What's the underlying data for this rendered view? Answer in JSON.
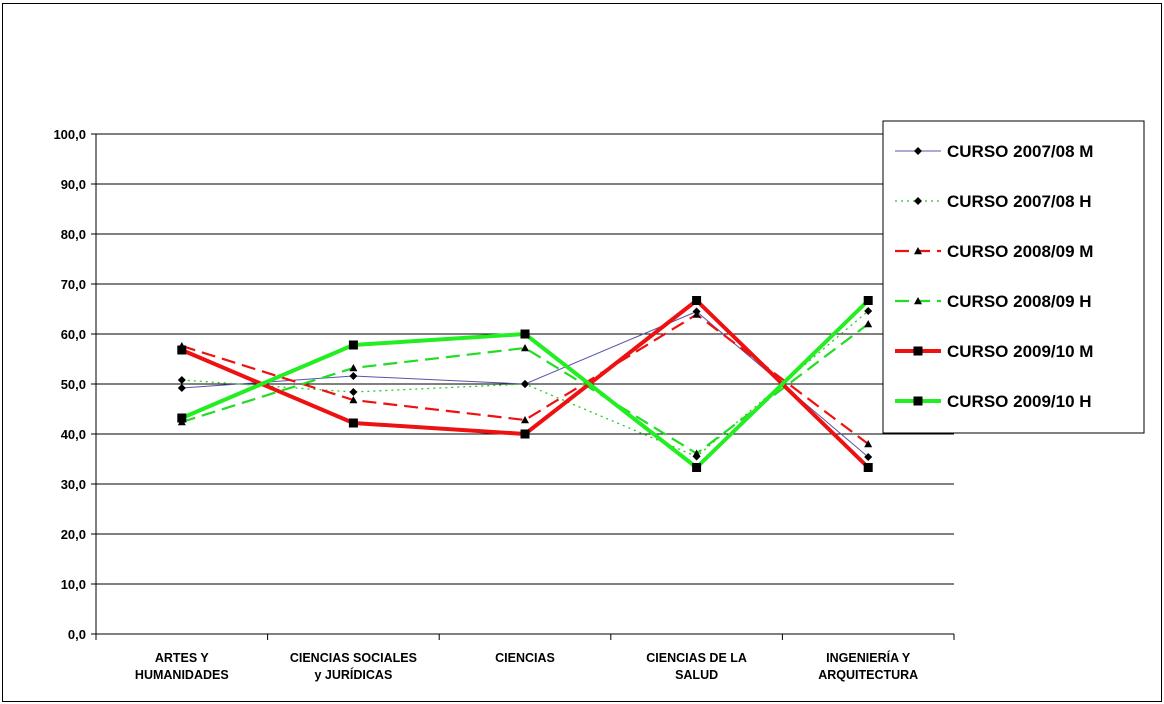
{
  "chart_data": {
    "type": "line",
    "categories": [
      [
        "ARTES Y",
        "HUMANIDADES"
      ],
      [
        "CIENCIAS SOCIALES",
        "y JURÍDICAS"
      ],
      [
        "CIENCIAS"
      ],
      [
        "CIENCIAS DE LA",
        "SALUD"
      ],
      [
        "INGENIERÍA Y",
        "ARQUITECTURA"
      ]
    ],
    "ylim": [
      0,
      100
    ],
    "yticks": [
      "0,0",
      "10,0",
      "20,0",
      "30,0",
      "40,0",
      "50,0",
      "60,0",
      "70,0",
      "80,0",
      "90,0",
      "100,0"
    ],
    "grid": true,
    "legend_position": "right",
    "series": [
      {
        "name": "CURSO 2007/08 M",
        "values": [
          49.2,
          51.6,
          50.0,
          64.5,
          35.4
        ],
        "color": "#5555aa",
        "dash": "",
        "width": 1,
        "marker": "diamond"
      },
      {
        "name": "CURSO 2007/08 H",
        "values": [
          50.8,
          48.4,
          50.0,
          35.5,
          64.6
        ],
        "color": "#22cc22",
        "dash": "2,4",
        "width": 1.3,
        "marker": "diamond"
      },
      {
        "name": "CURSO 2008/09 M",
        "values": [
          57.6,
          46.8,
          42.8,
          63.9,
          38.0
        ],
        "color": "#ee1111",
        "dash": "14,7",
        "width": 2.2,
        "marker": "triangle"
      },
      {
        "name": "CURSO 2008/09 H",
        "values": [
          42.4,
          53.2,
          57.2,
          36.1,
          62.0
        ],
        "color": "#22dd22",
        "dash": "14,7",
        "width": 2.2,
        "marker": "triangle"
      },
      {
        "name": "CURSO 2009/10 M",
        "values": [
          56.8,
          42.2,
          40.0,
          66.7,
          33.3
        ],
        "color": "#ee1111",
        "dash": "",
        "width": 4,
        "marker": "square"
      },
      {
        "name": "CURSO 2009/10 H",
        "values": [
          43.2,
          57.8,
          60.0,
          33.3,
          66.7
        ],
        "color": "#22ee22",
        "dash": "",
        "width": 4,
        "marker": "square"
      }
    ]
  }
}
